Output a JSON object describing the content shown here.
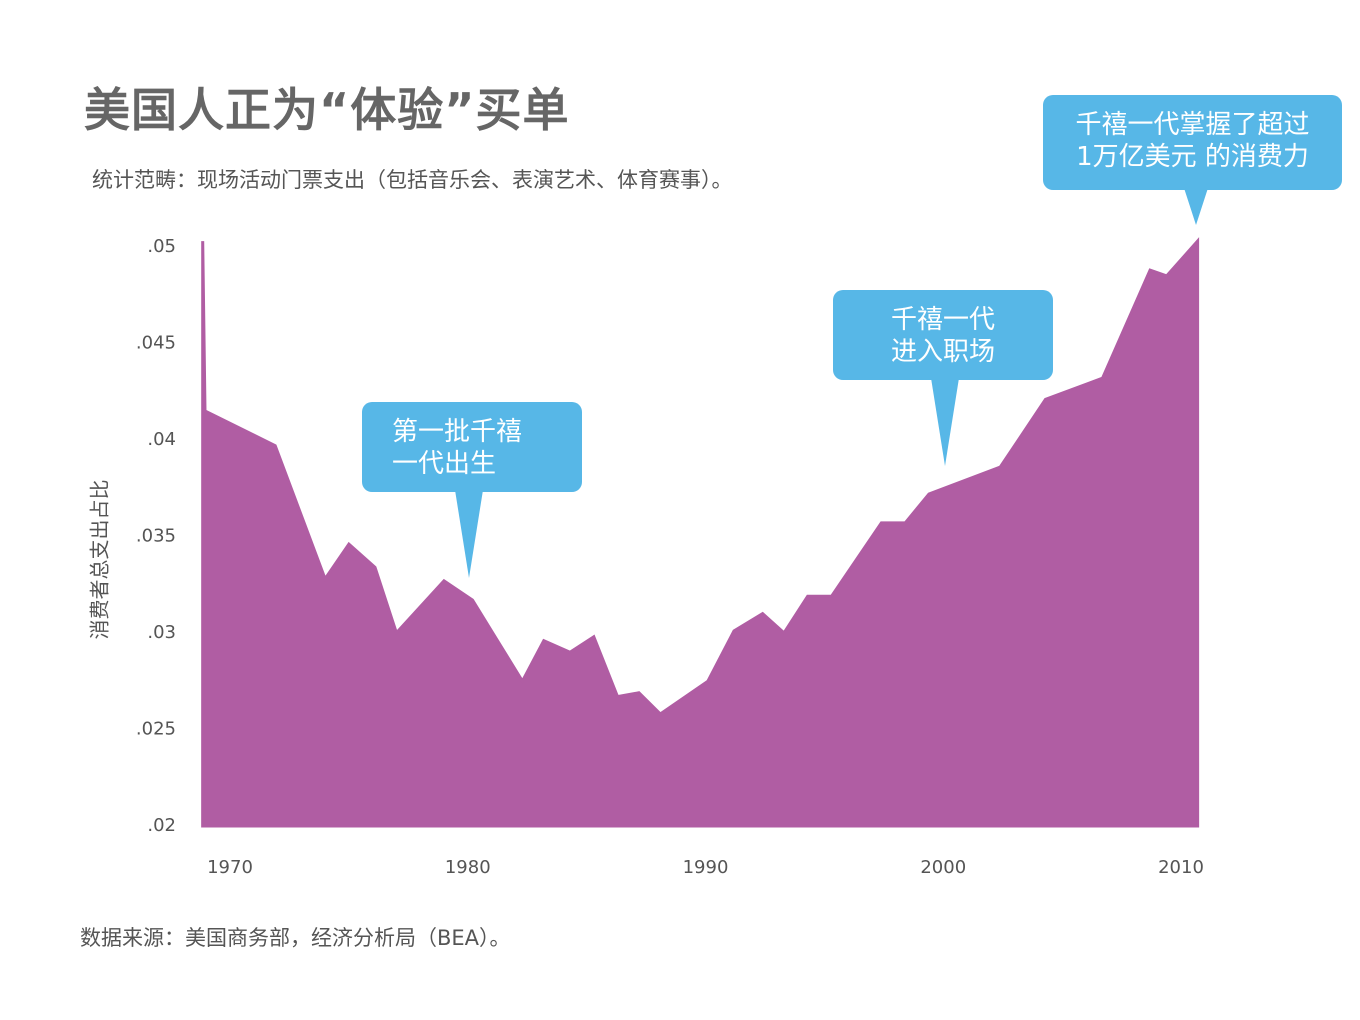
{
  "title": "美国人正为“体验”买单",
  "subtitle": "统计范畴：现场活动门票支出（包括音乐会、表演艺术、体育赛事）。",
  "source": "数据来源：美国商务部，经济分析局（BEA）。",
  "colors": {
    "area": "#b05da3",
    "callout": "#57b7e7",
    "text": "#555555"
  },
  "callouts": [
    {
      "lines": [
        "第一批千禧",
        "一代出生"
      ],
      "points_to_year": 1980
    },
    {
      "lines": [
        "千禧一代",
        "进入职场"
      ],
      "points_to_year": 1999
    },
    {
      "lines": [
        "千禧一代掌握了超过",
        "1万亿美元 的消费力"
      ],
      "points_to_year": 2010.6
    }
  ],
  "chart_data": {
    "type": "area",
    "title": "美国人正为“体验”买单",
    "xlabel": "",
    "ylabel": "消费者总支出占比",
    "xlim": [
      1968.85,
      2010.7
    ],
    "ylim": [
      0.02,
      0.05
    ],
    "x_ticks": [
      1970,
      1980,
      1990,
      2000,
      2010
    ],
    "x_tick_labels": [
      "1970",
      "1980",
      "1990",
      "2000",
      "2010"
    ],
    "y_ticks": [
      0.02,
      0.025,
      0.03,
      0.035,
      0.04,
      0.045,
      0.05
    ],
    "y_tick_labels": [
      ".02",
      ".025",
      ".03",
      ".035",
      ".04",
      ".045",
      ".05"
    ],
    "grid": false,
    "points": [
      [
        1968.85,
        0.0502
      ],
      [
        1968.95,
        0.0414
      ],
      [
        1971.9,
        0.0396
      ],
      [
        1974.0,
        0.0327
      ],
      [
        1975.0,
        0.0345
      ],
      [
        1976.1,
        0.0333
      ],
      [
        1977.0,
        0.0299
      ],
      [
        1979.0,
        0.0326
      ],
      [
        1980.2,
        0.0316
      ],
      [
        1982.3,
        0.0274
      ],
      [
        1983.2,
        0.0295
      ],
      [
        1984.3,
        0.0289
      ],
      [
        1985.3,
        0.0297
      ],
      [
        1986.3,
        0.0266
      ],
      [
        1987.2,
        0.0268
      ],
      [
        1988.1,
        0.0257
      ],
      [
        1990.1,
        0.0274
      ],
      [
        1991.2,
        0.03
      ],
      [
        1992.4,
        0.0309
      ],
      [
        1993.3,
        0.0299
      ],
      [
        1994.3,
        0.0318
      ],
      [
        1995.3,
        0.0318
      ],
      [
        1997.4,
        0.0356
      ],
      [
        1998.4,
        0.0356
      ],
      [
        1999.4,
        0.0371
      ],
      [
        2002.4,
        0.0385
      ],
      [
        2004.3,
        0.042
      ],
      [
        2006.7,
        0.0431
      ],
      [
        2008.7,
        0.0487
      ],
      [
        2009.4,
        0.0484
      ],
      [
        2010.7,
        0.0502
      ]
    ]
  }
}
